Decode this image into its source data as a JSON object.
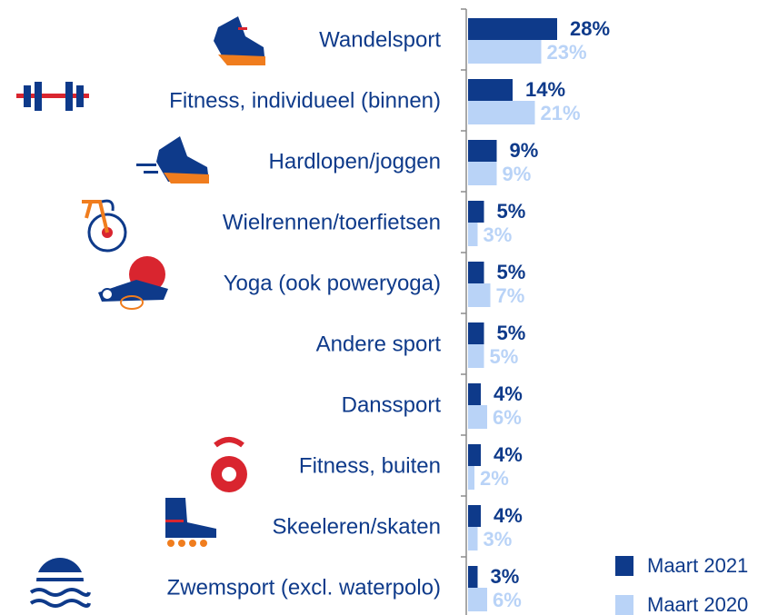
{
  "chart_data": {
    "type": "barh",
    "categories": [
      "Wandelsport",
      "Fitness, individueel (binnen)",
      "Hardlopen/joggen",
      "Wielrennen/toerfietsen",
      "Yoga (ook poweryoga)",
      "Andere sport",
      "Danssport",
      "Fitness, buiten",
      "Skeeleren/skaten",
      "Zwemsport (excl. waterpolo)"
    ],
    "series": [
      {
        "name": "Maart 2021",
        "color": "#0e3a8a",
        "values": [
          28,
          14,
          9,
          5,
          5,
          5,
          4,
          4,
          4,
          3
        ],
        "value_labels": [
          "28%",
          "14%",
          "9%",
          "5%",
          "5%",
          "5%",
          "4%",
          "4%",
          "4%",
          "3%"
        ]
      },
      {
        "name": "Maart 2020",
        "color": "#b9d3f7",
        "values": [
          23,
          21,
          9,
          3,
          7,
          5,
          6,
          2,
          3,
          6
        ],
        "value_labels": [
          "23%",
          "21%",
          "9%",
          "3%",
          "7%",
          "5%",
          "6%",
          "2%",
          "3%",
          "6%"
        ]
      }
    ]
  }
}
